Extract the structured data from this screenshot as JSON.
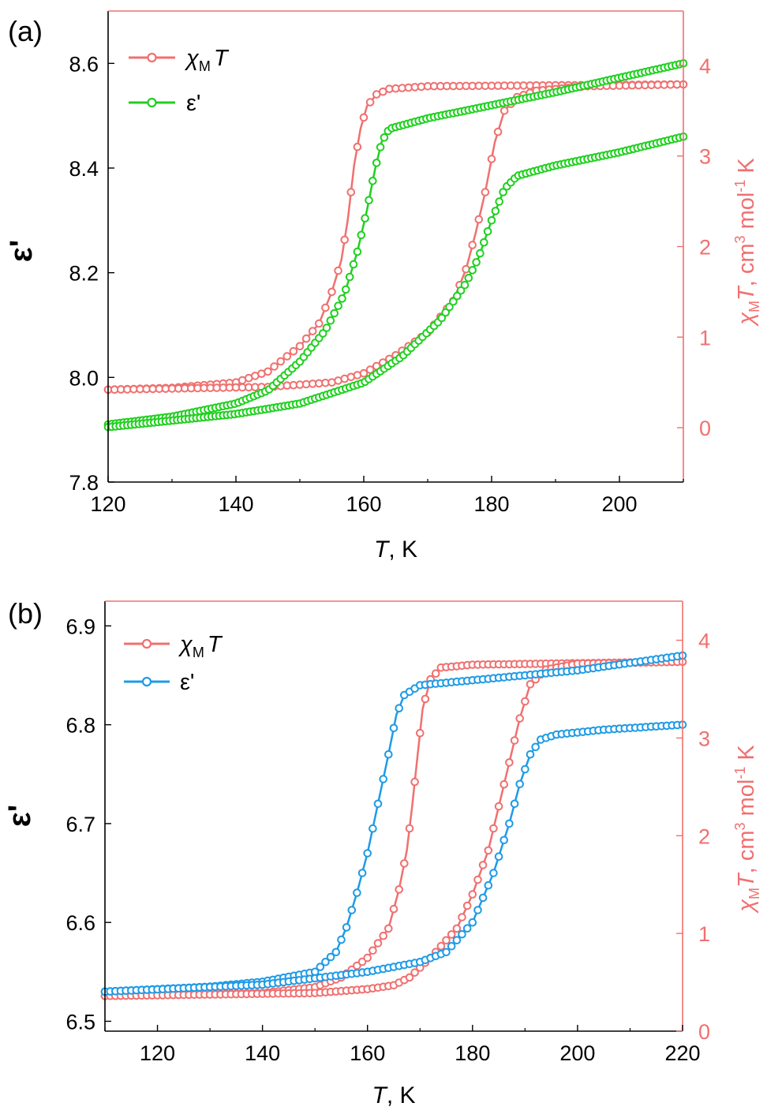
{
  "figure": {
    "colors": {
      "red": "#f07070",
      "green": "#1fd01f",
      "blue": "#1e9be6",
      "axis": "#000000"
    }
  },
  "chart_data": [
    {
      "panel_label": "(a)",
      "type": "scatter",
      "xlabel": {
        "italic": "T",
        "rest": ", K"
      },
      "ylabel_left": "ε'",
      "ylabel_right": {
        "sym": "χ",
        "sub": "M",
        "T": "T",
        "cm": ", cm",
        "sup3": "3",
        "mol": " mol",
        "supm1": "-1",
        "K": " K"
      },
      "xlim": [
        120,
        210
      ],
      "xticks": [
        120,
        140,
        160,
        180,
        200
      ],
      "xtick_labels": [
        "120",
        "140",
        "160",
        "180",
        "200"
      ],
      "ylim_left": [
        7.8,
        8.7
      ],
      "yticks_left": [
        7.8,
        8.0,
        8.2,
        8.4,
        8.6
      ],
      "ytick_labels_left": [
        "7.8",
        "8.0",
        "8.2",
        "8.4",
        "8.6"
      ],
      "ylim_right": [
        -0.6,
        4.6
      ],
      "yticks_right": [
        0,
        1,
        2,
        3,
        4
      ],
      "ytick_labels_right": [
        "0",
        "1",
        "2",
        "3",
        "4"
      ],
      "legend": {
        "position": "top-left",
        "entries": [
          {
            "sym": "χ",
            "sub": "M",
            "T": "T",
            "series": "chiT"
          },
          {
            "text": "ε'",
            "series": "eps"
          }
        ]
      },
      "series": [
        {
          "name": "chiT",
          "axis": "right",
          "color": "red",
          "step": 1,
          "cooling": [
            [
              120,
              0.42
            ],
            [
              130,
              0.44
            ],
            [
              140,
              0.5
            ],
            [
              145,
              0.62
            ],
            [
              150,
              0.9
            ],
            [
              153,
              1.15
            ],
            [
              155,
              1.5
            ],
            [
              156.5,
              1.85
            ],
            [
              157.5,
              2.3
            ],
            [
              158.5,
              2.9
            ],
            [
              159.5,
              3.3
            ],
            [
              160.5,
              3.55
            ],
            [
              162,
              3.68
            ],
            [
              164,
              3.74
            ],
            [
              170,
              3.77
            ],
            [
              210,
              3.79
            ]
          ],
          "heating": [
            [
              120,
              0.42
            ],
            [
              145,
              0.45
            ],
            [
              155,
              0.5
            ],
            [
              160,
              0.6
            ],
            [
              165,
              0.8
            ],
            [
              170,
              1.05
            ],
            [
              174,
              1.4
            ],
            [
              176,
              1.75
            ],
            [
              177.5,
              2.15
            ],
            [
              179,
              2.6
            ],
            [
              180.5,
              3.15
            ],
            [
              182,
              3.5
            ],
            [
              184,
              3.65
            ],
            [
              187,
              3.72
            ],
            [
              195,
              3.77
            ],
            [
              210,
              3.79
            ]
          ]
        },
        {
          "name": "eps",
          "axis": "left",
          "color": "green",
          "step": 0.6,
          "cooling": [
            [
              120,
              7.91
            ],
            [
              130,
              7.925
            ],
            [
              140,
              7.95
            ],
            [
              145,
              7.975
            ],
            [
              150,
              8.03
            ],
            [
              154,
              8.09
            ],
            [
              157,
              8.16
            ],
            [
              159,
              8.24
            ],
            [
              160.5,
              8.32
            ],
            [
              161.8,
              8.4
            ],
            [
              162.8,
              8.45
            ],
            [
              164,
              8.475
            ],
            [
              170,
              8.495
            ],
            [
              190,
              8.545
            ],
            [
              210,
              8.6
            ]
          ],
          "heating": [
            [
              120,
              7.905
            ],
            [
              140,
              7.93
            ],
            [
              150,
              7.95
            ],
            [
              160,
              7.99
            ],
            [
              166,
              8.04
            ],
            [
              172,
              8.11
            ],
            [
              176,
              8.18
            ],
            [
              178,
              8.23
            ],
            [
              180,
              8.3
            ],
            [
              182,
              8.36
            ],
            [
              184,
              8.385
            ],
            [
              190,
              8.405
            ],
            [
              200,
              8.43
            ],
            [
              210,
              8.46
            ]
          ]
        }
      ]
    },
    {
      "panel_label": "(b)",
      "type": "scatter",
      "xlabel": {
        "italic": "T",
        "rest": ", K"
      },
      "ylabel_left": "ε'",
      "ylabel_right": {
        "sym": "χ",
        "sub": "M",
        "T": "T",
        "cm": ", cm",
        "sup3": "3",
        "mol": " mol",
        "supm1": "-1",
        "K": " K"
      },
      "xlim": [
        110,
        220
      ],
      "xticks": [
        120,
        140,
        160,
        180,
        200,
        220
      ],
      "xtick_labels": [
        "120",
        "140",
        "160",
        "180",
        "200",
        "220"
      ],
      "ylim_left": [
        6.49,
        6.925
      ],
      "yticks_left": [
        6.5,
        6.6,
        6.7,
        6.8,
        6.9
      ],
      "ytick_labels_left": [
        "6.5",
        "6.6",
        "6.7",
        "6.8",
        "6.9"
      ],
      "ylim_right": [
        0,
        4.4
      ],
      "yticks_right": [
        0,
        1,
        2,
        3,
        4
      ],
      "ytick_labels_right": [
        "0",
        "1",
        "2",
        "3",
        "4"
      ],
      "legend": {
        "position": "top-left",
        "entries": [
          {
            "sym": "χ",
            "sub": "M",
            "T": "T",
            "series": "chiT"
          },
          {
            "text": "ε'",
            "series": "eps"
          }
        ]
      },
      "series": [
        {
          "name": "chiT",
          "axis": "right",
          "color": "red",
          "step": 1,
          "cooling": [
            [
              110,
              0.36
            ],
            [
              140,
              0.39
            ],
            [
              150,
              0.45
            ],
            [
              155,
              0.55
            ],
            [
              160,
              0.75
            ],
            [
              164,
              1.05
            ],
            [
              166,
              1.45
            ],
            [
              167.5,
              1.85
            ],
            [
              168.5,
              2.3
            ],
            [
              169.5,
              2.8
            ],
            [
              170.5,
              3.3
            ],
            [
              172,
              3.6
            ],
            [
              174,
              3.72
            ],
            [
              180,
              3.75
            ],
            [
              220,
              3.78
            ]
          ],
          "heating": [
            [
              110,
              0.36
            ],
            [
              150,
              0.39
            ],
            [
              160,
              0.43
            ],
            [
              165,
              0.47
            ],
            [
              168,
              0.55
            ],
            [
              172,
              0.75
            ],
            [
              177,
              1.05
            ],
            [
              180,
              1.4
            ],
            [
              183,
              1.85
            ],
            [
              185,
              2.3
            ],
            [
              187,
              2.75
            ],
            [
              189,
              3.2
            ],
            [
              191,
              3.55
            ],
            [
              194,
              3.7
            ],
            [
              200,
              3.76
            ],
            [
              220,
              3.78
            ]
          ]
        },
        {
          "name": "eps",
          "axis": "left",
          "color": "blue",
          "step": 1,
          "cooling": [
            [
              110,
              6.53
            ],
            [
              130,
              6.535
            ],
            [
              140,
              6.54
            ],
            [
              150,
              6.55
            ],
            [
              154,
              6.57
            ],
            [
              156,
              6.595
            ],
            [
              158,
              6.63
            ],
            [
              160,
              6.67
            ],
            [
              162,
              6.72
            ],
            [
              164,
              6.77
            ],
            [
              165.5,
              6.81
            ],
            [
              167,
              6.83
            ],
            [
              170,
              6.84
            ],
            [
              180,
              6.845
            ],
            [
              200,
              6.855
            ],
            [
              220,
              6.87
            ]
          ],
          "heating": [
            [
              110,
              6.53
            ],
            [
              140,
              6.537
            ],
            [
              160,
              6.55
            ],
            [
              170,
              6.56
            ],
            [
              175,
              6.57
            ],
            [
              180,
              6.6
            ],
            [
              184,
              6.65
            ],
            [
              187,
              6.7
            ],
            [
              189,
              6.74
            ],
            [
              191,
              6.77
            ],
            [
              193,
              6.785
            ],
            [
              196,
              6.79
            ],
            [
              205,
              6.795
            ],
            [
              220,
              6.8
            ]
          ]
        }
      ]
    }
  ]
}
